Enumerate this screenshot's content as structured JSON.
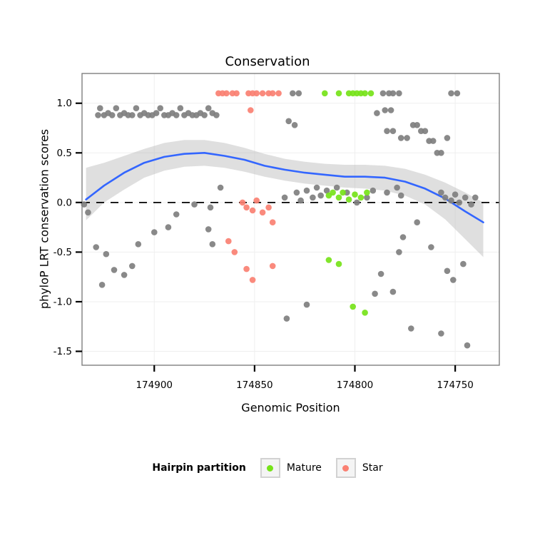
{
  "chart_data": {
    "type": "scatter",
    "title": "Conservation",
    "xlabel": "Genomic Position",
    "ylabel": "phyloP LRT conservation scores",
    "x_axis": {
      "reversed": true,
      "domain": [
        174936,
        174728
      ],
      "ticks": [
        {
          "value": 174900,
          "label": "174900"
        },
        {
          "value": 174850,
          "label": "174850"
        },
        {
          "value": 174800,
          "label": "174800"
        },
        {
          "value": 174750,
          "label": "174750"
        }
      ]
    },
    "y_axis": {
      "domain": [
        -1.64,
        1.3
      ],
      "ticks": [
        {
          "value": 1.0,
          "label": "1.0"
        },
        {
          "value": 0.5,
          "label": "0.5"
        },
        {
          "value": 0.0,
          "label": "0.0"
        },
        {
          "value": -0.5,
          "label": "-0.5"
        },
        {
          "value": -1.0,
          "label": "-1.0"
        },
        {
          "value": -1.5,
          "label": "-1.5"
        }
      ]
    },
    "grid_color": "#efefef",
    "panel_border_color": "#7f7f7f",
    "reference_line": {
      "y": 0,
      "style": "dashed",
      "color": "#000000"
    },
    "smooth": {
      "color": "#3366FF",
      "ribbon_color": "#b3b3b3",
      "points": [
        {
          "x": 174934,
          "y": 0.03,
          "lo": -0.18,
          "hi": 0.35
        },
        {
          "x": 174925,
          "y": 0.17,
          "lo": 0.0,
          "hi": 0.4
        },
        {
          "x": 174915,
          "y": 0.3,
          "lo": 0.13,
          "hi": 0.47
        },
        {
          "x": 174905,
          "y": 0.4,
          "lo": 0.25,
          "hi": 0.54
        },
        {
          "x": 174895,
          "y": 0.46,
          "lo": 0.32,
          "hi": 0.6
        },
        {
          "x": 174885,
          "y": 0.49,
          "lo": 0.36,
          "hi": 0.63
        },
        {
          "x": 174875,
          "y": 0.5,
          "lo": 0.37,
          "hi": 0.63
        },
        {
          "x": 174865,
          "y": 0.47,
          "lo": 0.35,
          "hi": 0.6
        },
        {
          "x": 174855,
          "y": 0.43,
          "lo": 0.31,
          "hi": 0.55
        },
        {
          "x": 174845,
          "y": 0.37,
          "lo": 0.26,
          "hi": 0.49
        },
        {
          "x": 174835,
          "y": 0.33,
          "lo": 0.22,
          "hi": 0.44
        },
        {
          "x": 174825,
          "y": 0.3,
          "lo": 0.19,
          "hi": 0.41
        },
        {
          "x": 174815,
          "y": 0.28,
          "lo": 0.17,
          "hi": 0.39
        },
        {
          "x": 174805,
          "y": 0.26,
          "lo": 0.15,
          "hi": 0.38
        },
        {
          "x": 174795,
          "y": 0.26,
          "lo": 0.14,
          "hi": 0.38
        },
        {
          "x": 174785,
          "y": 0.25,
          "lo": 0.12,
          "hi": 0.37
        },
        {
          "x": 174775,
          "y": 0.21,
          "lo": 0.07,
          "hi": 0.34
        },
        {
          "x": 174765,
          "y": 0.14,
          "lo": -0.02,
          "hi": 0.28
        },
        {
          "x": 174755,
          "y": 0.04,
          "lo": -0.17,
          "hi": 0.2
        },
        {
          "x": 174745,
          "y": -0.09,
          "lo": -0.37,
          "hi": 0.1
        },
        {
          "x": 174736,
          "y": -0.2,
          "lo": -0.55,
          "hi": 0.0
        }
      ]
    },
    "series": [
      {
        "name": "Other",
        "color": "#7f7f7f",
        "in_legend": false,
        "points": [
          [
            174928,
            0.88
          ],
          [
            174927,
            0.95
          ],
          [
            174925,
            0.88
          ],
          [
            174923,
            0.9
          ],
          [
            174921,
            0.88
          ],
          [
            174919,
            0.95
          ],
          [
            174917,
            0.88
          ],
          [
            174915,
            0.9
          ],
          [
            174913,
            0.88
          ],
          [
            174911,
            0.88
          ],
          [
            174909,
            0.95
          ],
          [
            174907,
            0.88
          ],
          [
            174905,
            0.9
          ],
          [
            174903,
            0.88
          ],
          [
            174901,
            0.88
          ],
          [
            174899,
            0.9
          ],
          [
            174897,
            0.95
          ],
          [
            174895,
            0.88
          ],
          [
            174893,
            0.88
          ],
          [
            174891,
            0.9
          ],
          [
            174889,
            0.88
          ],
          [
            174887,
            0.95
          ],
          [
            174885,
            0.88
          ],
          [
            174883,
            0.9
          ],
          [
            174881,
            0.88
          ],
          [
            174879,
            0.88
          ],
          [
            174877,
            0.9
          ],
          [
            174875,
            0.88
          ],
          [
            174873,
            0.95
          ],
          [
            174871,
            0.9
          ],
          [
            174869,
            0.88
          ],
          [
            174831,
            1.1
          ],
          [
            174828,
            1.1
          ],
          [
            174786,
            1.1
          ],
          [
            174783,
            1.1
          ],
          [
            174781,
            1.1
          ],
          [
            174778,
            1.1
          ],
          [
            174752,
            1.1
          ],
          [
            174749,
            1.1
          ],
          [
            174785,
            0.93
          ],
          [
            174782,
            0.93
          ],
          [
            174789,
            0.9
          ],
          [
            174833,
            0.82
          ],
          [
            174830,
            0.78
          ],
          [
            174784,
            0.72
          ],
          [
            174781,
            0.72
          ],
          [
            174777,
            0.65
          ],
          [
            174774,
            0.65
          ],
          [
            174771,
            0.78
          ],
          [
            174769,
            0.78
          ],
          [
            174767,
            0.72
          ],
          [
            174765,
            0.72
          ],
          [
            174763,
            0.62
          ],
          [
            174761,
            0.62
          ],
          [
            174759,
            0.5
          ],
          [
            174757,
            0.5
          ],
          [
            174754,
            0.65
          ],
          [
            174935,
            -0.02
          ],
          [
            174933,
            -0.1
          ],
          [
            174880,
            -0.02
          ],
          [
            174872,
            -0.05
          ],
          [
            174867,
            0.15
          ],
          [
            174835,
            0.05
          ],
          [
            174829,
            0.1
          ],
          [
            174827,
            0.02
          ],
          [
            174824,
            0.12
          ],
          [
            174821,
            0.05
          ],
          [
            174819,
            0.15
          ],
          [
            174817,
            0.07
          ],
          [
            174814,
            0.12
          ],
          [
            174809,
            0.15
          ],
          [
            174804,
            0.1
          ],
          [
            174799,
            0.0
          ],
          [
            174794,
            0.05
          ],
          [
            174791,
            0.12
          ],
          [
            174784,
            0.1
          ],
          [
            174779,
            0.15
          ],
          [
            174777,
            0.07
          ],
          [
            174757,
            0.1
          ],
          [
            174755,
            0.05
          ],
          [
            174752,
            0.02
          ],
          [
            174750,
            0.08
          ],
          [
            174748,
            0.0
          ],
          [
            174745,
            0.05
          ],
          [
            174742,
            -0.02
          ],
          [
            174740,
            0.05
          ],
          [
            174929,
            -0.45
          ],
          [
            174926,
            -0.83
          ],
          [
            174924,
            -0.52
          ],
          [
            174920,
            -0.68
          ],
          [
            174915,
            -0.73
          ],
          [
            174911,
            -0.64
          ],
          [
            174908,
            -0.42
          ],
          [
            174900,
            -0.3
          ],
          [
            174893,
            -0.25
          ],
          [
            174889,
            -0.12
          ],
          [
            174873,
            -0.27
          ],
          [
            174871,
            -0.42
          ],
          [
            174834,
            -1.17
          ],
          [
            174824,
            -1.03
          ],
          [
            174790,
            -0.92
          ],
          [
            174787,
            -0.72
          ],
          [
            174781,
            -0.9
          ],
          [
            174778,
            -0.5
          ],
          [
            174776,
            -0.35
          ],
          [
            174772,
            -1.27
          ],
          [
            174769,
            -0.2
          ],
          [
            174762,
            -0.45
          ],
          [
            174754,
            -0.69
          ],
          [
            174751,
            -0.78
          ],
          [
            174757,
            -1.32
          ],
          [
            174746,
            -0.62
          ],
          [
            174744,
            -1.44
          ]
        ]
      },
      {
        "name": "Mature",
        "color": "#76E319",
        "in_legend": true,
        "points": [
          [
            174815,
            1.1
          ],
          [
            174808,
            1.1
          ],
          [
            174803,
            1.1
          ],
          [
            174801,
            1.1
          ],
          [
            174799,
            1.1
          ],
          [
            174797,
            1.1
          ],
          [
            174795,
            1.1
          ],
          [
            174792,
            1.1
          ],
          [
            174813,
            0.07
          ],
          [
            174811,
            0.1
          ],
          [
            174808,
            0.05
          ],
          [
            174806,
            0.1
          ],
          [
            174803,
            0.03
          ],
          [
            174800,
            0.08
          ],
          [
            174797,
            0.05
          ],
          [
            174794,
            0.1
          ],
          [
            174813,
            -0.58
          ],
          [
            174808,
            -0.62
          ],
          [
            174801,
            -1.05
          ],
          [
            174795,
            -1.11
          ]
        ]
      },
      {
        "name": "Star",
        "color": "#FA8072",
        "in_legend": true,
        "points": [
          [
            174868,
            1.1
          ],
          [
            174866,
            1.1
          ],
          [
            174864,
            1.1
          ],
          [
            174861,
            1.1
          ],
          [
            174859,
            1.1
          ],
          [
            174853,
            1.1
          ],
          [
            174851,
            1.1
          ],
          [
            174849,
            1.1
          ],
          [
            174846,
            1.1
          ],
          [
            174843,
            1.1
          ],
          [
            174841,
            1.1
          ],
          [
            174838,
            1.1
          ],
          [
            174852,
            0.93
          ],
          [
            174856,
            0.0
          ],
          [
            174854,
            -0.05
          ],
          [
            174851,
            -0.08
          ],
          [
            174849,
            0.02
          ],
          [
            174846,
            -0.1
          ],
          [
            174843,
            -0.05
          ],
          [
            174841,
            -0.2
          ],
          [
            174863,
            -0.39
          ],
          [
            174860,
            -0.5
          ],
          [
            174854,
            -0.67
          ],
          [
            174851,
            -0.78
          ],
          [
            174841,
            -0.64
          ]
        ]
      }
    ],
    "legend": {
      "title": "Hairpin partition",
      "position": "bottom",
      "items": [
        {
          "label": "Mature",
          "color": "#76E319"
        },
        {
          "label": "Star",
          "color": "#FA8072"
        }
      ]
    }
  }
}
